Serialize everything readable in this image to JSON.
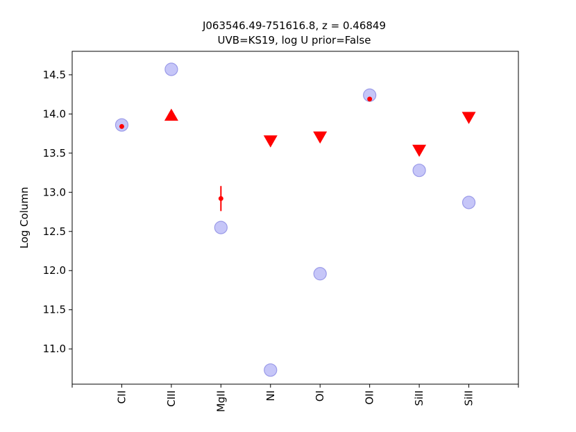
{
  "chart_data": {
    "type": "scatter",
    "title_line1": "J063546.49-751616.8, z = 0.46849",
    "title_line2": "UVB=KS19, log U prior=False",
    "xlabel": "",
    "ylabel": "Log Column",
    "categories": [
      "CII",
      "CIII",
      "MgII",
      "NI",
      "OI",
      "OII",
      "SiII",
      "SiII"
    ],
    "ylim": [
      10.55,
      14.8
    ],
    "yticks": [
      "11.0",
      "11.5",
      "12.0",
      "12.5",
      "13.0",
      "13.5",
      "14.0",
      "14.5"
    ],
    "grid": false,
    "colors": {
      "model": "#b3b3f5",
      "model_edge": "#9a9ae8",
      "observed": "#ff0000"
    },
    "model": [
      13.86,
      14.57,
      12.55,
      10.73,
      11.96,
      14.24,
      13.28,
      12.87
    ],
    "observed": [
      {
        "category": "CII",
        "value": 13.84,
        "kind": "detection"
      },
      {
        "category": "CIII",
        "value": 13.98,
        "kind": "lower_limit"
      },
      {
        "category": "MgII",
        "value": 12.92,
        "err": 0.16,
        "kind": "detection"
      },
      {
        "category": "NI",
        "value": 13.66,
        "kind": "upper_limit"
      },
      {
        "category": "OI",
        "value": 13.71,
        "kind": "upper_limit"
      },
      {
        "category": "OII",
        "value": 14.19,
        "kind": "detection"
      },
      {
        "category": "SiII",
        "value": 13.54,
        "kind": "upper_limit"
      },
      {
        "category": "SiII",
        "value": 13.96,
        "kind": "upper_limit"
      }
    ]
  }
}
